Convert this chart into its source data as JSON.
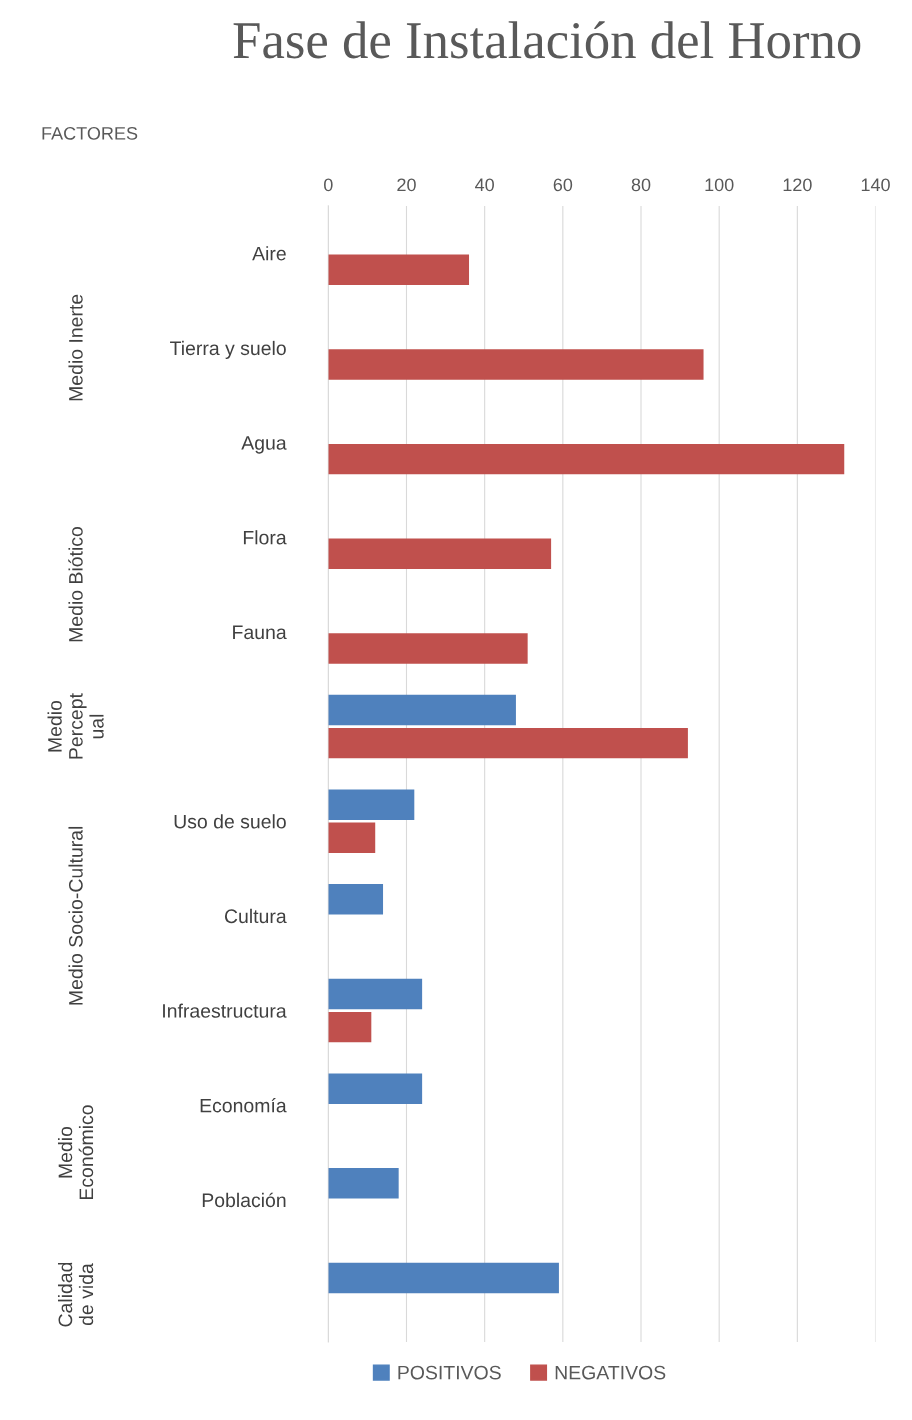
{
  "chart_data": {
    "type": "bar",
    "orientation": "horizontal",
    "title": "Fase de Instalación del Horno",
    "categories": [
      "Aire",
      "Tierra y suelo",
      "Agua",
      "Flora",
      "Fauna",
      null,
      "Uso de suelo",
      "Cultura",
      "Infraestructura",
      "Economía",
      "Población",
      null
    ],
    "series": [
      {
        "name": "POSITIVOS",
        "color": "#4f81bd",
        "values": [
          0,
          0,
          0,
          0,
          0,
          48,
          22,
          14,
          24,
          24,
          18,
          59
        ]
      },
      {
        "name": "NEGATIVOS",
        "color": "#c0504d",
        "values": [
          36,
          96,
          132,
          57,
          51,
          92,
          12,
          0,
          11,
          0,
          0,
          0
        ]
      }
    ],
    "xlim": [
      0,
      140
    ],
    "xticks": [
      0,
      20,
      40,
      60,
      80,
      100,
      120,
      140
    ],
    "annotations": [
      "FACTORES",
      "Medio Inerte",
      "Medio Biótico",
      "Medio\nPercept\nual",
      "Medio Socio-Cultural",
      "Medio\nEconómico",
      "Calidad\nde vida"
    ],
    "grid": "x",
    "legend": "bottom"
  }
}
